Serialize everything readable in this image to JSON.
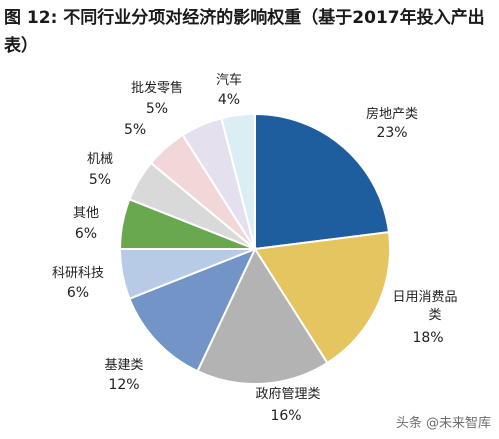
{
  "figure": {
    "number": "图 12:",
    "title": "不同行业分项对经济的影响权重（基于2017年投入产出表）"
  },
  "chart_data": {
    "type": "pie",
    "slices": [
      {
        "name": "房地产类",
        "value": 23,
        "label": "23%",
        "color": "#1f5e9e"
      },
      {
        "name": "日用消费品类",
        "value": 18,
        "label": "18%",
        "color": "#e4c55f"
      },
      {
        "name": "政府管理类",
        "value": 16,
        "label": "16%",
        "color": "#b3b3b3"
      },
      {
        "name": "基建类",
        "value": 12,
        "label": "12%",
        "color": "#7394c6"
      },
      {
        "name": "科研科技",
        "value": 6,
        "label": "6%",
        "color": "#b7cbe6"
      },
      {
        "name": "其他",
        "value": 6,
        "label": "6%",
        "color": "#6aa84f"
      },
      {
        "name": "机械",
        "value": 5,
        "label": "5%",
        "color": "#d9d9d9"
      },
      {
        "name": "批发零售",
        "value": 5,
        "label": "5%",
        "color": "#f2d7d9"
      },
      {
        "name": "",
        "value": 5,
        "label": "",
        "color": "#e5e0ee"
      },
      {
        "name": "汽车",
        "value": 4,
        "label": "4%",
        "color": "#daeef3"
      }
    ]
  },
  "stray_label": "5%",
  "watermark": "头条 @未来智库"
}
